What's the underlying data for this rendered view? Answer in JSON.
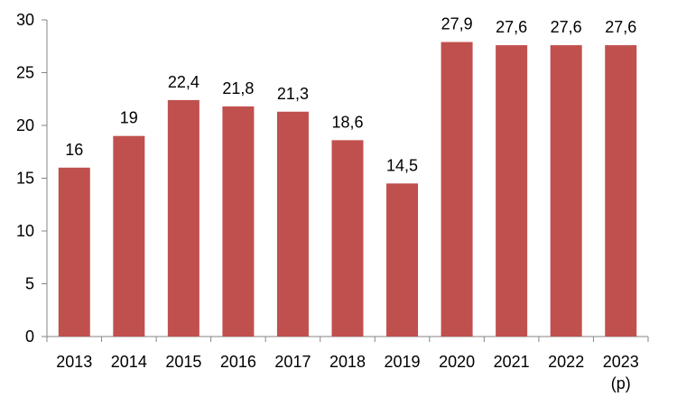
{
  "chart_data": {
    "type": "bar",
    "title": "",
    "xlabel": "",
    "ylabel": "",
    "categories": [
      "2013",
      "2014",
      "2015",
      "2016",
      "2017",
      "2018",
      "2019",
      "2020",
      "2021",
      "2022",
      "2023"
    ],
    "category_sublabels": [
      "",
      "",
      "",
      "",
      "",
      "",
      "",
      "",
      "",
      "",
      "(p)"
    ],
    "values": [
      16,
      19,
      22.4,
      21.8,
      21.3,
      18.6,
      14.5,
      27.9,
      27.6,
      27.6,
      27.6
    ],
    "data_labels": [
      "16",
      "19",
      "22,4",
      "21,8",
      "21,3",
      "18,6",
      "14,5",
      "27,9",
      "27,6",
      "27,6",
      "27,6"
    ],
    "ylim": [
      0,
      30
    ],
    "yticks": [
      0,
      5,
      10,
      15,
      20,
      25,
      30
    ],
    "grid": false,
    "legend": "none",
    "bar_color": "#c0504d",
    "axis_color": "#868686"
  }
}
